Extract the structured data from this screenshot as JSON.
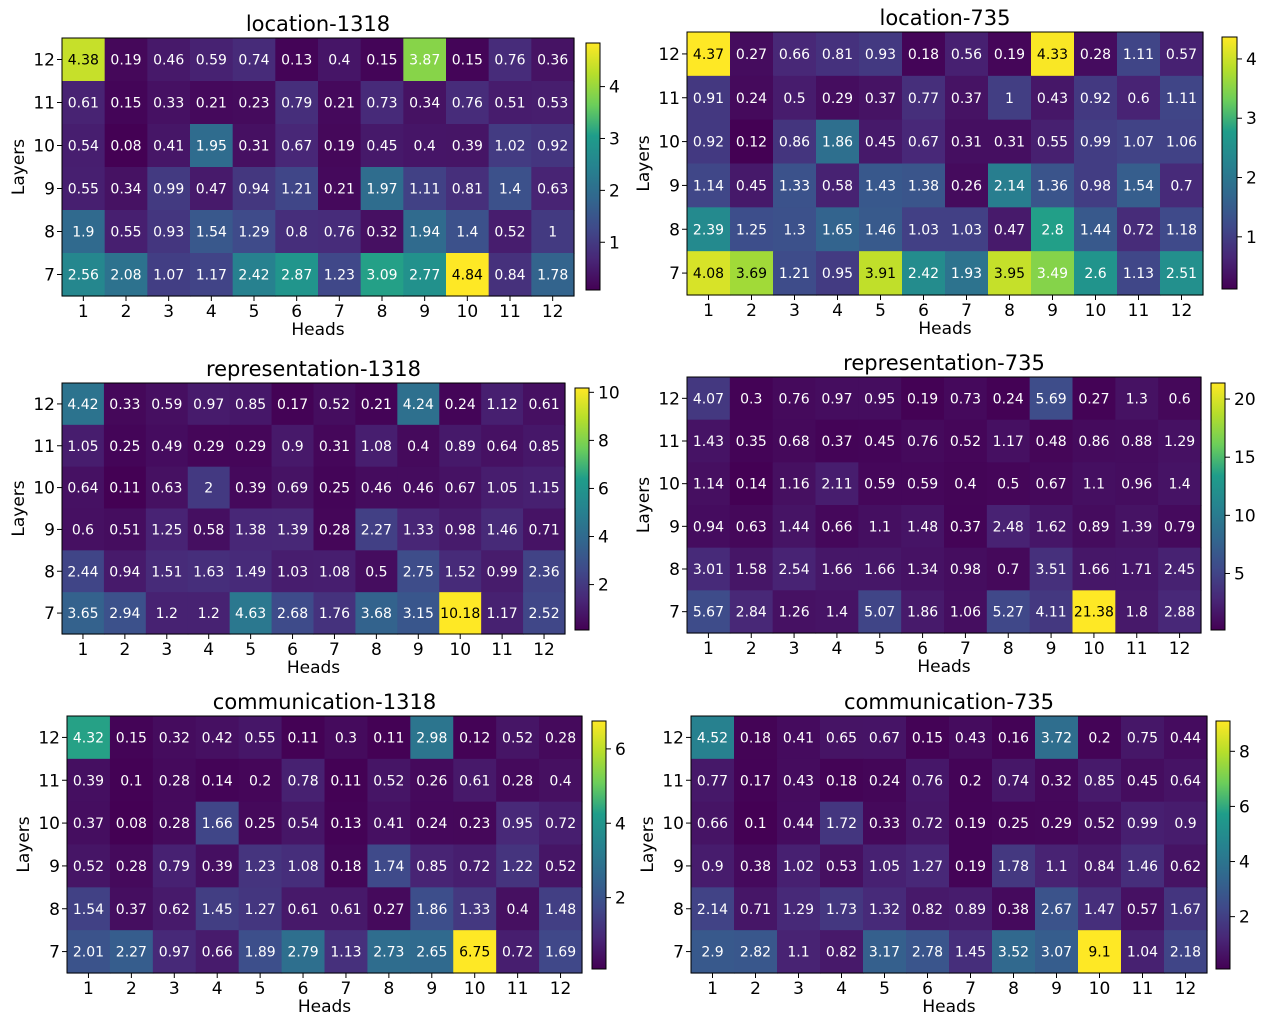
{
  "colormap": [
    "#440154",
    "#482777",
    "#3f4a8a",
    "#31688e",
    "#26838f",
    "#1f9d8a",
    "#6cce5a",
    "#b6de2b",
    "#fee825"
  ],
  "chart_data": [
    {
      "type": "heatmap",
      "title": "location-1318",
      "xlabel": "Heads",
      "ylabel": "Layers",
      "x_categories": [
        "1",
        "2",
        "3",
        "4",
        "5",
        "6",
        "7",
        "8",
        "9",
        "10",
        "11",
        "12"
      ],
      "y_categories": [
        "12",
        "11",
        "10",
        "9",
        "8",
        "7"
      ],
      "values": [
        [
          4.38,
          0.19,
          0.46,
          0.59,
          0.74,
          0.13,
          0.4,
          0.15,
          3.87,
          0.15,
          0.76,
          0.36
        ],
        [
          0.61,
          0.15,
          0.33,
          0.21,
          0.23,
          0.79,
          0.21,
          0.73,
          0.34,
          0.76,
          0.51,
          0.53
        ],
        [
          0.54,
          0.08,
          0.41,
          1.95,
          0.31,
          0.67,
          0.19,
          0.45,
          0.4,
          0.39,
          1.02,
          0.92
        ],
        [
          0.55,
          0.34,
          0.99,
          0.47,
          0.94,
          1.21,
          0.21,
          1.97,
          1.11,
          0.81,
          1.4,
          0.63
        ],
        [
          1.9,
          0.55,
          0.93,
          1.54,
          1.29,
          0.8,
          0.76,
          0.32,
          1.94,
          1.4,
          0.52,
          1.0
        ],
        [
          2.56,
          2.08,
          1.07,
          1.17,
          2.42,
          2.87,
          1.23,
          3.09,
          2.77,
          4.84,
          0.84,
          1.78
        ]
      ],
      "vmin": 0.08,
      "vmax": 4.84,
      "colorbar_ticks": [
        "1",
        "2",
        "3",
        "4"
      ]
    },
    {
      "type": "heatmap",
      "title": "location-735",
      "xlabel": "Heads",
      "ylabel": "Layers",
      "x_categories": [
        "1",
        "2",
        "3",
        "4",
        "5",
        "6",
        "7",
        "8",
        "9",
        "10",
        "11",
        "12"
      ],
      "y_categories": [
        "12",
        "11",
        "10",
        "9",
        "8",
        "7"
      ],
      "values": [
        [
          4.37,
          0.27,
          0.66,
          0.81,
          0.93,
          0.18,
          0.56,
          0.19,
          4.33,
          0.28,
          1.11,
          0.57
        ],
        [
          0.91,
          0.24,
          0.5,
          0.29,
          0.37,
          0.77,
          0.37,
          1.0,
          0.43,
          0.92,
          0.6,
          1.11
        ],
        [
          0.92,
          0.12,
          0.86,
          1.86,
          0.45,
          0.67,
          0.31,
          0.31,
          0.55,
          0.99,
          1.07,
          1.06
        ],
        [
          1.14,
          0.45,
          1.33,
          0.58,
          1.43,
          1.38,
          0.26,
          2.14,
          1.36,
          0.98,
          1.54,
          0.7
        ],
        [
          2.39,
          1.25,
          1.3,
          1.65,
          1.46,
          1.03,
          1.03,
          0.47,
          2.8,
          1.44,
          0.72,
          1.18
        ],
        [
          4.08,
          3.69,
          1.21,
          0.95,
          3.91,
          2.42,
          1.93,
          3.95,
          3.49,
          2.6,
          1.13,
          2.51
        ]
      ],
      "vmin": 0.12,
      "vmax": 4.37,
      "colorbar_ticks": [
        "1",
        "2",
        "3",
        "4"
      ]
    },
    {
      "type": "heatmap",
      "title": "representation-1318",
      "xlabel": "Heads",
      "ylabel": "Layers",
      "x_categories": [
        "1",
        "2",
        "3",
        "4",
        "5",
        "6",
        "7",
        "8",
        "9",
        "10",
        "11",
        "12"
      ],
      "y_categories": [
        "12",
        "11",
        "10",
        "9",
        "8",
        "7"
      ],
      "values": [
        [
          4.42,
          0.33,
          0.59,
          0.97,
          0.85,
          0.17,
          0.52,
          0.21,
          4.24,
          0.24,
          1.12,
          0.61
        ],
        [
          1.05,
          0.25,
          0.49,
          0.29,
          0.29,
          0.9,
          0.31,
          1.08,
          0.4,
          0.89,
          0.64,
          0.85
        ],
        [
          0.64,
          0.11,
          0.63,
          2.0,
          0.39,
          0.69,
          0.25,
          0.46,
          0.46,
          0.67,
          1.05,
          1.15
        ],
        [
          0.6,
          0.51,
          1.25,
          0.58,
          1.38,
          1.39,
          0.28,
          2.27,
          1.33,
          0.98,
          1.46,
          0.71
        ],
        [
          2.44,
          0.94,
          1.51,
          1.63,
          1.49,
          1.03,
          1.08,
          0.5,
          2.75,
          1.52,
          0.99,
          2.36
        ],
        [
          3.65,
          2.94,
          1.2,
          1.2,
          4.63,
          2.68,
          1.76,
          3.68,
          3.15,
          10.18,
          1.17,
          2.52
        ]
      ],
      "vmin": 0.11,
      "vmax": 10.18,
      "colorbar_ticks": [
        "2",
        "4",
        "6",
        "8",
        "10"
      ]
    },
    {
      "type": "heatmap",
      "title": "representation-735",
      "xlabel": "Heads",
      "ylabel": "Layers",
      "x_categories": [
        "1",
        "2",
        "3",
        "4",
        "5",
        "6",
        "7",
        "8",
        "9",
        "10",
        "11",
        "12"
      ],
      "y_categories": [
        "12",
        "11",
        "10",
        "9",
        "8",
        "7"
      ],
      "values": [
        [
          4.07,
          0.3,
          0.76,
          0.97,
          0.95,
          0.19,
          0.73,
          0.24,
          5.69,
          0.27,
          1.3,
          0.6
        ],
        [
          1.43,
          0.35,
          0.68,
          0.37,
          0.45,
          0.76,
          0.52,
          1.17,
          0.48,
          0.86,
          0.88,
          1.29
        ],
        [
          1.14,
          0.14,
          1.16,
          2.11,
          0.59,
          0.59,
          0.4,
          0.5,
          0.67,
          1.1,
          0.96,
          1.4
        ],
        [
          0.94,
          0.63,
          1.44,
          0.66,
          1.1,
          1.48,
          0.37,
          2.48,
          1.62,
          0.89,
          1.39,
          0.79
        ],
        [
          3.01,
          1.58,
          2.54,
          1.66,
          1.66,
          1.34,
          0.98,
          0.7,
          3.51,
          1.66,
          1.71,
          2.45
        ],
        [
          5.67,
          2.84,
          1.26,
          1.4,
          5.07,
          1.86,
          1.06,
          5.27,
          4.11,
          21.38,
          1.8,
          2.88
        ]
      ],
      "vmin": 0.14,
      "vmax": 21.38,
      "colorbar_ticks": [
        "5",
        "10",
        "15",
        "20"
      ]
    },
    {
      "type": "heatmap",
      "title": "communication-1318",
      "xlabel": "Heads",
      "ylabel": "Layers",
      "x_categories": [
        "1",
        "2",
        "3",
        "4",
        "5",
        "6",
        "7",
        "8",
        "9",
        "10",
        "11",
        "12"
      ],
      "y_categories": [
        "12",
        "11",
        "10",
        "9",
        "8",
        "7"
      ],
      "values": [
        [
          4.32,
          0.15,
          0.32,
          0.42,
          0.55,
          0.11,
          0.3,
          0.11,
          2.98,
          0.12,
          0.52,
          0.28
        ],
        [
          0.39,
          0.1,
          0.28,
          0.14,
          0.2,
          0.78,
          0.11,
          0.52,
          0.26,
          0.61,
          0.28,
          0.4
        ],
        [
          0.37,
          0.08,
          0.28,
          1.66,
          0.25,
          0.54,
          0.13,
          0.41,
          0.24,
          0.23,
          0.95,
          0.72
        ],
        [
          0.52,
          0.28,
          0.79,
          0.39,
          1.23,
          1.08,
          0.18,
          1.74,
          0.85,
          0.72,
          1.22,
          0.52
        ],
        [
          1.54,
          0.37,
          0.62,
          1.45,
          1.27,
          0.61,
          0.61,
          0.27,
          1.86,
          1.33,
          0.4,
          1.48
        ],
        [
          2.01,
          2.27,
          0.97,
          0.66,
          1.89,
          2.79,
          1.13,
          2.73,
          2.65,
          6.75,
          0.72,
          1.69
        ]
      ],
      "vmin": 0.08,
      "vmax": 6.75,
      "colorbar_ticks": [
        "2",
        "4",
        "6"
      ]
    },
    {
      "type": "heatmap",
      "title": "communication-735",
      "xlabel": "Heads",
      "ylabel": "Layers",
      "x_categories": [
        "1",
        "2",
        "3",
        "4",
        "5",
        "6",
        "7",
        "8",
        "9",
        "10",
        "11",
        "12"
      ],
      "y_categories": [
        "12",
        "11",
        "10",
        "9",
        "8",
        "7"
      ],
      "values": [
        [
          4.52,
          0.18,
          0.41,
          0.65,
          0.67,
          0.15,
          0.43,
          0.16,
          3.72,
          0.2,
          0.75,
          0.44
        ],
        [
          0.77,
          0.17,
          0.43,
          0.18,
          0.24,
          0.76,
          0.2,
          0.74,
          0.32,
          0.85,
          0.45,
          0.64
        ],
        [
          0.66,
          0.1,
          0.44,
          1.72,
          0.33,
          0.72,
          0.19,
          0.25,
          0.29,
          0.52,
          0.99,
          0.9
        ],
        [
          0.9,
          0.38,
          1.02,
          0.53,
          1.05,
          1.27,
          0.19,
          1.78,
          1.1,
          0.84,
          1.46,
          0.62
        ],
        [
          2.14,
          0.71,
          1.29,
          1.73,
          1.32,
          0.82,
          0.89,
          0.38,
          2.67,
          1.47,
          0.57,
          1.67
        ],
        [
          2.9,
          2.82,
          1.1,
          0.82,
          3.17,
          2.78,
          1.45,
          3.52,
          3.07,
          9.1,
          1.04,
          2.18
        ]
      ],
      "vmin": 0.1,
      "vmax": 9.1,
      "colorbar_ticks": [
        "2",
        "4",
        "6",
        "8"
      ]
    }
  ]
}
